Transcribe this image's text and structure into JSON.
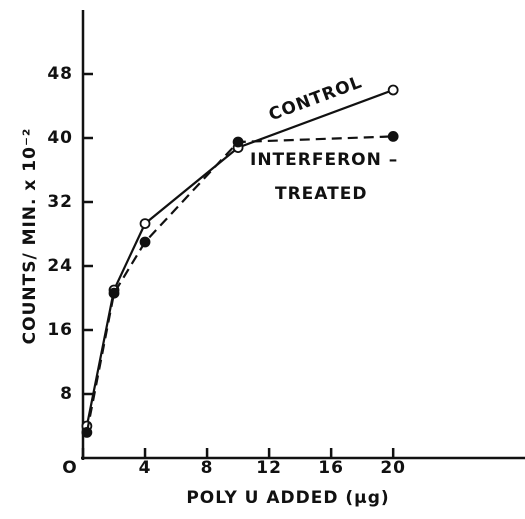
{
  "chart_data": {
    "type": "line",
    "xlabel": "POLY U ADDED (µg)",
    "ylabel": "COUNTS/ MIN. x 10⁻²",
    "xlim": [
      0,
      28.5
    ],
    "ylim": [
      0,
      56
    ],
    "xticks": [
      {
        "value": 0,
        "label": "O"
      },
      4,
      8,
      12,
      16,
      20
    ],
    "yticks": [
      8,
      16,
      24,
      32,
      40,
      48
    ],
    "series": [
      {
        "name": "CONTROL",
        "color": "#111111",
        "marker": "open",
        "dashed": false,
        "x": [
          0.25,
          2,
          4,
          10,
          20
        ],
        "values": [
          4,
          21,
          29.3,
          38.8,
          46
        ]
      },
      {
        "color": "#111111",
        "marker": "filled",
        "dashed": true,
        "x": [
          0.25,
          2,
          4,
          10,
          20
        ],
        "values": [
          3.2,
          20.6,
          27,
          39.5,
          40.2
        ]
      }
    ],
    "annotations": [
      "INTERFERON –",
      "TREATED"
    ]
  }
}
